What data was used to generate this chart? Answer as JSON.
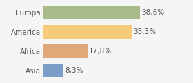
{
  "categories": [
    "Europa",
    "America",
    "Africa",
    "Asia"
  ],
  "values": [
    38.6,
    35.3,
    17.8,
    8.3
  ],
  "labels": [
    "38,6%",
    "35,3%",
    "17,8%",
    "8,3%"
  ],
  "bar_colors": [
    "#a8bc8a",
    "#f5cc7a",
    "#e0a878",
    "#7b9ec8"
  ],
  "background_color": "#f5f5f5",
  "xlim": [
    0,
    46
  ],
  "bar_height": 0.72,
  "label_fontsize": 7.5,
  "tick_fontsize": 7.5
}
